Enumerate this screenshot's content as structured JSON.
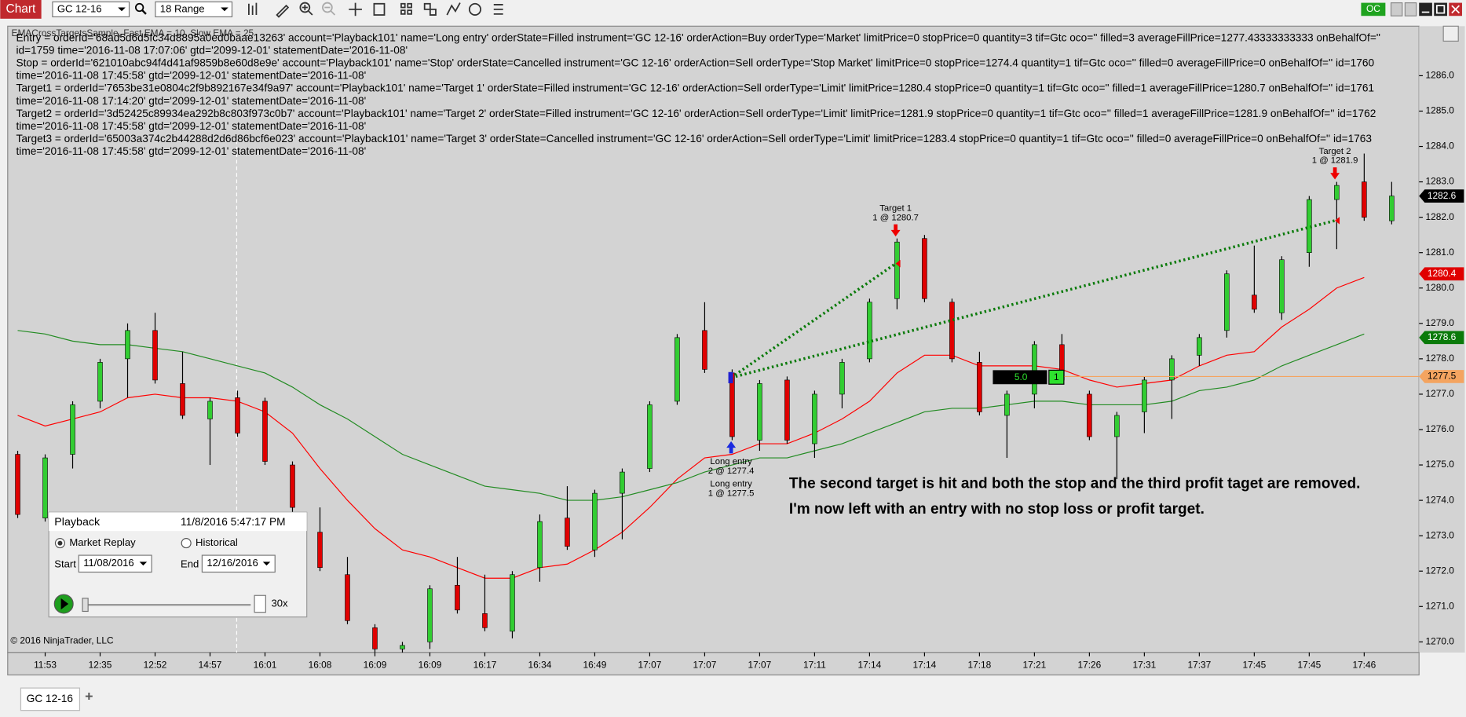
{
  "toolbar": {
    "app": "Chart",
    "instrument": "GC 12-16",
    "period": "18 Range",
    "oc": "OC"
  },
  "orders": [
    "Entry = orderId='68ad5d6d5fc34d8895a0ed0baae13263' account='Playback101' name='Long entry' orderState=Filled instrument='GC 12-16' orderAction=Buy orderType='Market' limitPrice=0 stopPrice=0 quantity=3 tif=Gtc oco='' filled=3 averageFillPrice=1277.43333333333 onBehalfOf=''",
    "id=1759 time='2016-11-08 17:07:06' gtd='2099-12-01' statementDate='2016-11-08'",
    "Stop = orderId='621010abc94f4d41af9859b8e60d8e9e' account='Playback101' name='Stop' orderState=Cancelled instrument='GC 12-16' orderAction=Sell orderType='Stop Market' limitPrice=0 stopPrice=1274.4 quantity=1 tif=Gtc oco='' filled=0 averageFillPrice=0 onBehalfOf='' id=1760",
    "time='2016-11-08 17:45:58' gtd='2099-12-01' statementDate='2016-11-08'",
    "Target1 = orderId='7653be31e0804c2f9b892167e34f9a97' account='Playback101' name='Target 1' orderState=Filled instrument='GC 12-16' orderAction=Sell orderType='Limit' limitPrice=1280.4 stopPrice=0 quantity=1 tif=Gtc oco='' filled=1 averageFillPrice=1280.7 onBehalfOf='' id=1761",
    "time='2016-11-08 17:14:20' gtd='2099-12-01' statementDate='2016-11-08'",
    "Target2 = orderId='3d52425c89934ea292b8c803f973c0b7' account='Playback101' name='Target 2' orderState=Filled instrument='GC 12-16' orderAction=Sell orderType='Limit' limitPrice=1281.9 stopPrice=0 quantity=1 tif=Gtc oco='' filled=1 averageFillPrice=1281.9 onBehalfOf='' id=1762",
    "time='2016-11-08 17:45:58' gtd='2099-12-01' statementDate='2016-11-08'",
    "Target3 = orderId='65003a374c2b44288d2d6d86bcf6e023' account='Playback101' name='Target 3' orderState=Cancelled instrument='GC 12-16' orderAction=Sell orderType='Limit' limitPrice=1283.4 stopPrice=0 quantity=1 tif=Gtc oco='' filled=0 averageFillPrice=0 onBehalfOf='' id=1763",
    "time='2016-11-08 17:45:58' gtd='2099-12-01' statementDate='2016-11-08'"
  ],
  "chart_data": {
    "type": "candlestick",
    "title": "EMACrossTargetsSample, Fast EMA = 10, Slow EMA = 25",
    "categories": [
      null,
      "11:53",
      null,
      "12:35",
      null,
      "12:52",
      null,
      "14:57",
      null,
      "16:01",
      null,
      "16:08",
      null,
      "16:09",
      null,
      "16:09",
      null,
      "16:17",
      null,
      "16:34",
      null,
      "16:49",
      null,
      "17:07",
      null,
      "17:07",
      null,
      "17:07",
      null,
      "17:11",
      null,
      "17:14",
      null,
      "17:14",
      null,
      "17:18",
      null,
      "17:21",
      null,
      "17:26",
      null,
      "17:31",
      null,
      "17:37",
      null,
      "17:45",
      null,
      "17:45",
      null,
      "17:46",
      null
    ],
    "open": [
      1275.3,
      1273.5,
      1275.3,
      1276.8,
      1278.0,
      1278.8,
      1277.3,
      1276.3,
      1276.9,
      1276.8,
      1275.0,
      1273.1,
      1271.9,
      1270.4,
      1269.8,
      1270.0,
      1271.6,
      1270.8,
      1270.3,
      1272.1,
      1273.5,
      1272.6,
      1274.2,
      1274.9,
      1276.8,
      1278.8,
      1277.6,
      1275.7,
      1277.4,
      1275.6,
      1277.0,
      1278.0,
      1279.7,
      1281.4,
      1279.6,
      1277.9,
      1276.4,
      1277.0,
      1278.4,
      1277.0,
      1275.8,
      1276.5,
      1277.4,
      1278.1,
      1278.8,
      1279.8,
      1279.3,
      1281.0,
      1282.5,
      1283.0,
      1281.9
    ],
    "high": [
      1275.4,
      1275.3,
      1276.8,
      1278.0,
      1279.0,
      1279.3,
      1278.2,
      1276.9,
      1277.1,
      1276.9,
      1275.1,
      1273.8,
      1272.4,
      1270.5,
      1270.0,
      1271.6,
      1272.4,
      1271.9,
      1272.0,
      1273.6,
      1274.4,
      1274.3,
      1274.9,
      1276.8,
      1278.7,
      1279.6,
      1277.7,
      1277.4,
      1277.5,
      1277.1,
      1278.0,
      1279.7,
      1281.4,
      1281.5,
      1279.7,
      1278.2,
      1277.1,
      1278.5,
      1278.7,
      1277.1,
      1276.5,
      1277.5,
      1278.1,
      1278.7,
      1280.5,
      1281.2,
      1280.9,
      1282.6,
      1283.0,
      1283.8,
      1283.0
    ],
    "low": [
      1273.5,
      1273.4,
      1274.9,
      1276.6,
      1276.9,
      1277.3,
      1276.3,
      1275.0,
      1275.8,
      1275.0,
      1273.4,
      1272.0,
      1270.5,
      1269.7,
      1269.7,
      1269.8,
      1270.8,
      1270.3,
      1270.1,
      1271.7,
      1272.6,
      1272.4,
      1272.9,
      1274.8,
      1276.7,
      1277.6,
      1275.7,
      1275.4,
      1275.6,
      1275.2,
      1276.6,
      1277.9,
      1279.4,
      1279.6,
      1277.9,
      1276.4,
      1275.2,
      1276.6,
      1277.3,
      1275.7,
      1274.6,
      1275.9,
      1276.3,
      1277.8,
      1278.6,
      1279.3,
      1279.1,
      1280.6,
      1281.1,
      1281.9,
      1281.8
    ],
    "close": [
      1273.6,
      1275.2,
      1276.7,
      1277.9,
      1278.8,
      1277.4,
      1276.4,
      1276.8,
      1275.9,
      1275.1,
      1273.8,
      1272.1,
      1270.6,
      1269.8,
      1269.9,
      1271.5,
      1270.9,
      1270.4,
      1271.9,
      1273.4,
      1272.7,
      1274.2,
      1274.8,
      1276.7,
      1278.6,
      1277.7,
      1275.8,
      1277.3,
      1275.7,
      1277.0,
      1277.9,
      1279.6,
      1281.3,
      1279.7,
      1278.0,
      1276.5,
      1277.0,
      1278.4,
      1277.4,
      1275.8,
      1276.4,
      1277.4,
      1278.0,
      1278.6,
      1280.4,
      1279.4,
      1280.8,
      1282.5,
      1282.9,
      1282.0,
      1282.6
    ],
    "up_color": "#32cd32",
    "down_color": "#e00000",
    "series": [
      {
        "name": "Fast EMA",
        "color": "#ff0000",
        "values": [
          1276.4,
          1276.1,
          1276.3,
          1276.5,
          1276.9,
          1277.0,
          1276.9,
          1276.9,
          1276.8,
          1276.5,
          1275.9,
          1274.9,
          1274.0,
          1273.2,
          1272.6,
          1272.4,
          1272.1,
          1271.8,
          1271.8,
          1272.1,
          1272.2,
          1272.6,
          1273.1,
          1273.8,
          1274.6,
          1275.2,
          1275.3,
          1275.6,
          1275.6,
          1275.9,
          1276.3,
          1276.8,
          1277.6,
          1278.1,
          1278.1,
          1277.8,
          1277.8,
          1277.8,
          1277.7,
          1277.4,
          1277.2,
          1277.3,
          1277.4,
          1277.8,
          1278.1,
          1278.2,
          1278.9,
          1279.4,
          1280.0,
          1280.3,
          null
        ]
      },
      {
        "name": "Slow EMA",
        "color": "#228b22",
        "values": [
          1278.8,
          1278.7,
          1278.5,
          1278.4,
          1278.4,
          1278.3,
          1278.2,
          1278.0,
          1277.8,
          1277.6,
          1277.2,
          1276.7,
          1276.3,
          1275.8,
          1275.3,
          1275.0,
          1274.7,
          1274.4,
          1274.3,
          1274.2,
          1274.0,
          1274.0,
          1274.1,
          1274.3,
          1274.5,
          1274.8,
          1275.0,
          1275.2,
          1275.2,
          1275.4,
          1275.6,
          1275.9,
          1276.2,
          1276.5,
          1276.6,
          1276.6,
          1276.7,
          1276.8,
          1276.8,
          1276.7,
          1276.7,
          1276.7,
          1276.8,
          1277.1,
          1277.2,
          1277.4,
          1277.8,
          1278.1,
          1278.4,
          1278.7,
          null
        ]
      }
    ],
    "ylim": [
      1269.7,
      1287.4
    ],
    "yticks": [
      {
        "value": 1270,
        "label": "1270.0"
      },
      {
        "value": 1271,
        "label": "1271.0"
      },
      {
        "value": 1272,
        "label": "1272.0"
      },
      {
        "value": 1273,
        "label": "1273.0"
      },
      {
        "value": 1274,
        "label": "1274.0"
      },
      {
        "value": 1275,
        "label": "1275.0"
      },
      {
        "value": 1276,
        "label": "1276.0"
      },
      {
        "value": 1277,
        "label": "1277.0"
      },
      {
        "value": 1278,
        "label": "1278.0"
      },
      {
        "value": 1279,
        "label": "1279.0"
      },
      {
        "value": 1280,
        "label": "1280.0"
      },
      {
        "value": 1281,
        "label": "1281.0"
      },
      {
        "value": 1282,
        "label": "1282.0"
      },
      {
        "value": 1283,
        "label": "1283.0"
      },
      {
        "value": 1284,
        "label": "1284.0"
      },
      {
        "value": 1285,
        "label": "1285.0"
      },
      {
        "value": 1286,
        "label": "1286.0"
      }
    ],
    "price_markers": [
      {
        "value": 1282.6,
        "color": "#000000"
      },
      {
        "value": 1280.4,
        "color": "#e00000"
      },
      {
        "value": 1278.6,
        "color": "#0a7a0a"
      },
      {
        "value": 1277.5,
        "color": "#f4a460"
      }
    ],
    "executions": {
      "target1": "Target 1",
      "target1_fill": "1 @ 1280.7",
      "target2": "Target 2",
      "target2_fill": "1 @ 1281.9",
      "entry1": "Long entry",
      "entry1_fill": "2 @ 1277.4",
      "entry2": "Long entry",
      "entry2_fill": "1 @ 1277.5"
    },
    "position": {
      "pnl": "5.0",
      "quantity": "1"
    },
    "annotations": [
      "The second target is hit and both the stop and the third profit taget are removed.",
      "I'm now left with an entry with no stop loss or profit target."
    ],
    "copyright": "© 2016 NinjaTrader, LLC"
  },
  "playback": {
    "title": "Playback",
    "time": "11/8/2016 5:47:17 PM",
    "market_replay": "Market Replay",
    "historical": "Historical",
    "start_label": "Start",
    "start": "11/08/2016",
    "end_label": "End",
    "end": "12/16/2016",
    "speed": "30x"
  },
  "tabs": {
    "tab": "GC 12-16",
    "add": "+"
  }
}
